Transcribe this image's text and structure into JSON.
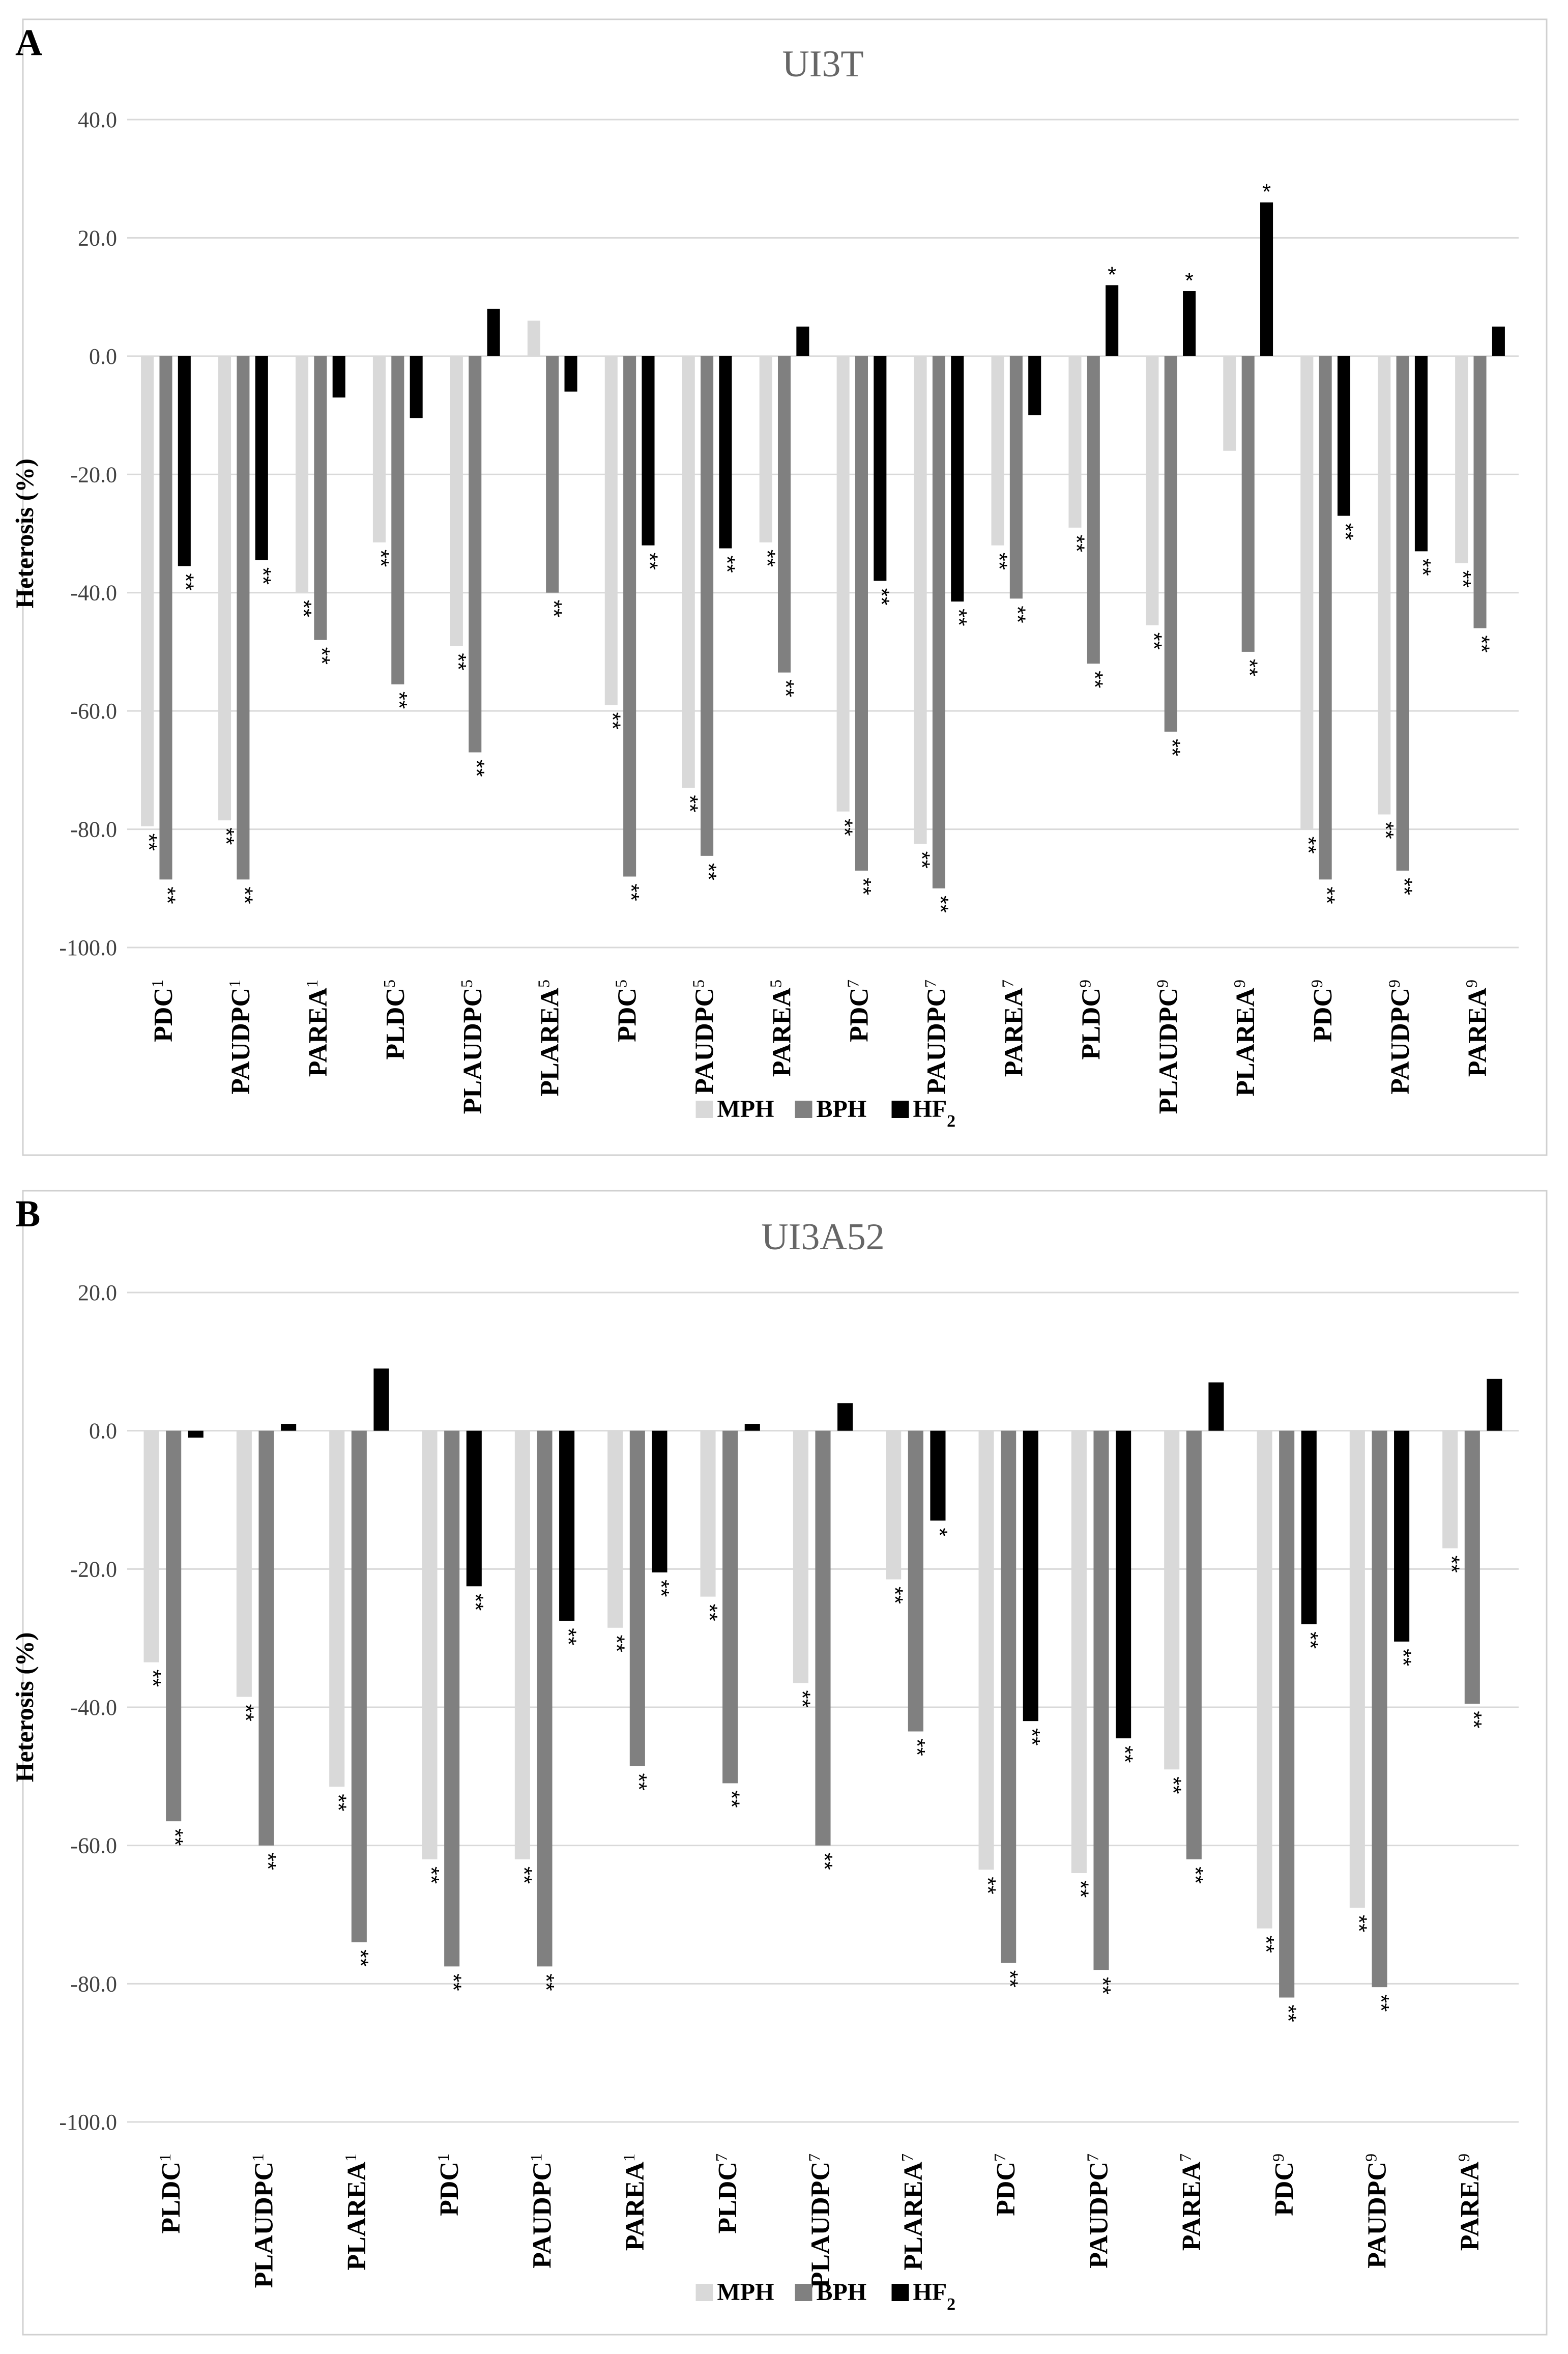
{
  "colors": {
    "MPH": "#d9d9d9",
    "BPH": "#808080",
    "HF2": "#000000",
    "grid": "#d9d9d9",
    "border": "#d0d0d0"
  },
  "legend": [
    {
      "key": "MPH",
      "label": "MPH"
    },
    {
      "key": "BPH",
      "label": "BPH"
    },
    {
      "key": "HF2",
      "label": "HF",
      "sub": "2"
    }
  ],
  "chart_data": [
    {
      "panel": "A",
      "type": "bar",
      "title": "UI3T",
      "ylabel": "Heterosis (%)",
      "ylim": [
        -100,
        40
      ],
      "yticks": [
        "40.0",
        "20.0",
        "0.0",
        "-20.0",
        "-40.0",
        "-60.0",
        "-80.0",
        "-100.0"
      ],
      "yticks_num": [
        40,
        20,
        0,
        -20,
        -40,
        -60,
        -80,
        -100
      ],
      "categories": [
        {
          "base": "PDC",
          "sup": "1"
        },
        {
          "base": "PAUDPC",
          "sup": "1"
        },
        {
          "base": "PAREA",
          "sup": "1"
        },
        {
          "base": "PLDC",
          "sup": "5"
        },
        {
          "base": "PLAUDPC",
          "sup": "5"
        },
        {
          "base": "PLAREA",
          "sup": "5"
        },
        {
          "base": "PDC",
          "sup": "5"
        },
        {
          "base": "PAUDPC",
          "sup": "5"
        },
        {
          "base": "PAREA",
          "sup": "5"
        },
        {
          "base": "PDC",
          "sup": "7"
        },
        {
          "base": "PAUDPC",
          "sup": "7"
        },
        {
          "base": "PAREA",
          "sup": "7"
        },
        {
          "base": "PLDC",
          "sup": "9"
        },
        {
          "base": "PLAUDPC",
          "sup": "9"
        },
        {
          "base": "PLAREA",
          "sup": "9"
        },
        {
          "base": "PDC",
          "sup": "9"
        },
        {
          "base": "PAUDPC",
          "sup": "9"
        },
        {
          "base": "PAREA",
          "sup": "9"
        }
      ],
      "series": [
        {
          "name": "MPH",
          "values": [
            -79.5,
            -78.5,
            -40.0,
            -31.5,
            -49.0,
            6.0,
            -59.0,
            -73.0,
            -31.5,
            -77.0,
            -82.5,
            -32.0,
            -29.0,
            -45.5,
            -16.0,
            -80.0,
            -77.5,
            -35.0
          ],
          "stars": [
            "**",
            "**",
            "**",
            "**",
            "**",
            "",
            "**",
            "**",
            "**",
            "**",
            "**",
            "**",
            "**",
            "**",
            "",
            "**",
            "**",
            "**"
          ]
        },
        {
          "name": "BPH",
          "values": [
            -88.5,
            -88.5,
            -48.0,
            -55.5,
            -67.0,
            -40.0,
            -88.0,
            -84.5,
            -53.5,
            -87.0,
            -90.0,
            -41.0,
            -52.0,
            -63.5,
            -50.0,
            -88.5,
            -87.0,
            -46.0
          ],
          "stars": [
            "**",
            "**",
            "**",
            "**",
            "**",
            "**",
            "**",
            "**",
            "**",
            "**",
            "**",
            "**",
            "**",
            "**",
            "**",
            "**",
            "**",
            "**"
          ]
        },
        {
          "name": "HF2",
          "values": [
            -35.5,
            -34.5,
            -7.0,
            -10.5,
            8.0,
            -6.0,
            -32.0,
            -32.5,
            5.0,
            -38.0,
            -41.5,
            -10.0,
            12.0,
            11.0,
            26.0,
            -27.0,
            -33.0,
            5.0
          ],
          "stars": [
            "**",
            "**",
            "",
            "",
            "",
            "",
            "**",
            "**",
            "",
            "**",
            "**",
            "",
            "*",
            "*",
            "*",
            "**",
            "**",
            ""
          ]
        }
      ]
    },
    {
      "panel": "B",
      "type": "bar",
      "title": "UI3A52",
      "ylabel": "Heterosis (%)",
      "ylim": [
        -100,
        20
      ],
      "yticks": [
        "20.0",
        "0.0",
        "-20.0",
        "-40.0",
        "-60.0",
        "-80.0",
        "-100.0"
      ],
      "yticks_num": [
        20,
        0,
        -20,
        -40,
        -60,
        -80,
        -100
      ],
      "categories": [
        {
          "base": "PLDC",
          "sup": "1"
        },
        {
          "base": "PLAUDPC",
          "sup": "1"
        },
        {
          "base": "PLAREA",
          "sup": "1"
        },
        {
          "base": "PDC",
          "sup": "1"
        },
        {
          "base": "PAUDPC",
          "sup": "1"
        },
        {
          "base": "PAREA",
          "sup": "1"
        },
        {
          "base": "PLDC",
          "sup": "7"
        },
        {
          "base": "PLAUDPC",
          "sup": "7"
        },
        {
          "base": "PLAREA",
          "sup": "7"
        },
        {
          "base": "PDC",
          "sup": "7"
        },
        {
          "base": "PAUDPC",
          "sup": "7"
        },
        {
          "base": "PAREA",
          "sup": "7"
        },
        {
          "base": "PDC",
          "sup": "9"
        },
        {
          "base": "PAUDPC",
          "sup": "9"
        },
        {
          "base": "PAREA",
          "sup": "9"
        }
      ],
      "series": [
        {
          "name": "MPH",
          "values": [
            -33.5,
            -38.5,
            -51.5,
            -62.0,
            -62.0,
            -28.5,
            -24.0,
            -36.5,
            -21.5,
            -63.5,
            -64.0,
            -49.0,
            -72.0,
            -69.0,
            -17.0
          ],
          "stars": [
            "**",
            "**",
            "**",
            "**",
            "**",
            "**",
            "**",
            "**",
            "**",
            "**",
            "**",
            "**",
            "**",
            "**",
            "**"
          ]
        },
        {
          "name": "BPH",
          "values": [
            -56.5,
            -60.0,
            -74.0,
            -77.5,
            -77.5,
            -48.5,
            -51.0,
            -60.0,
            -43.5,
            -77.0,
            -78.0,
            -62.0,
            -82.0,
            -80.5,
            -39.5
          ],
          "stars": [
            "**",
            "**",
            "**",
            "**",
            "**",
            "**",
            "**",
            "**",
            "**",
            "**",
            "**",
            "**",
            "**",
            "**",
            "**"
          ]
        },
        {
          "name": "HF2",
          "values": [
            -1.0,
            1.0,
            9.0,
            -22.5,
            -27.5,
            -20.5,
            1.0,
            4.0,
            -13.0,
            -42.0,
            -44.5,
            7.0,
            -28.0,
            -30.5,
            7.5
          ],
          "stars": [
            "",
            "",
            "",
            "**",
            "**",
            "**",
            "",
            "",
            "*",
            "**",
            "**",
            "",
            "**",
            "**",
            ""
          ]
        }
      ]
    }
  ]
}
